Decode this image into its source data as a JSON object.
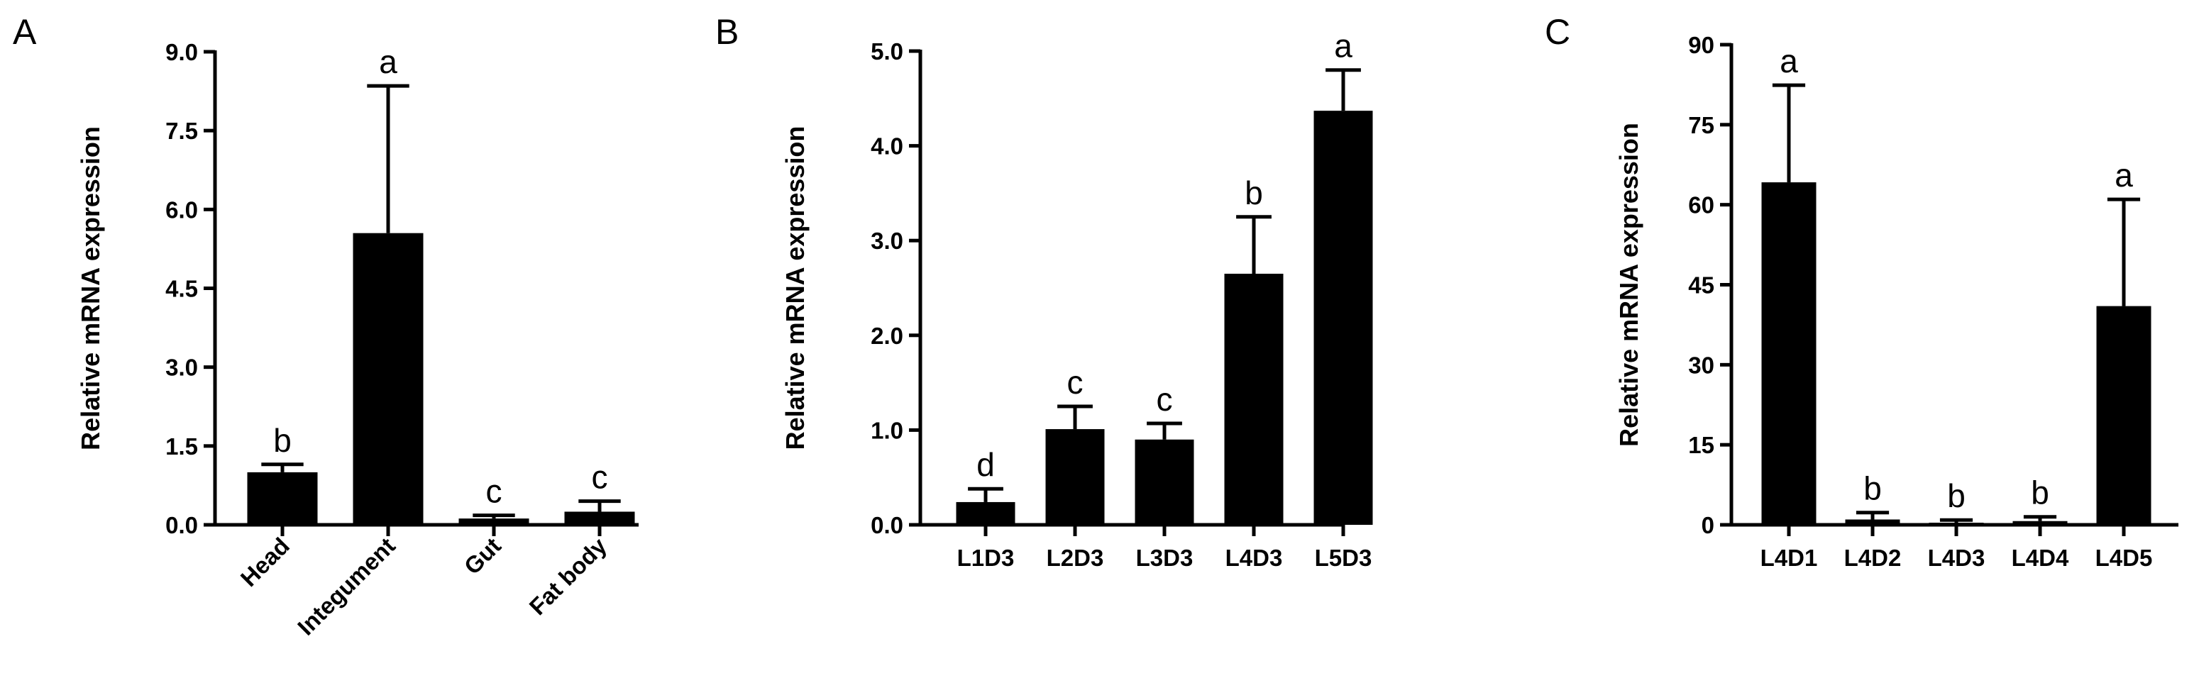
{
  "chart_data": [
    {
      "panel": "A",
      "type": "bar",
      "ylabel": "Relative mRNA expression",
      "ylim": [
        0,
        9
      ],
      "yticks": [
        "0.0",
        "1.5",
        "3.0",
        "4.5",
        "6.0",
        "7.5",
        "9.0"
      ],
      "categories": [
        "Head",
        "Integument",
        "Gut",
        "Fat body"
      ],
      "values": [
        1.0,
        5.55,
        0.12,
        0.25
      ],
      "errors": [
        0.15,
        2.8,
        0.06,
        0.2
      ],
      "significance": [
        "b",
        "a",
        "c",
        "c"
      ],
      "rotated_labels": true
    },
    {
      "panel": "B",
      "type": "bar",
      "ylabel": "Relative mRNA expression",
      "ylim": [
        0,
        5
      ],
      "yticks": [
        "0.0",
        "1.0",
        "2.0",
        "3.0",
        "4.0",
        "5.0"
      ],
      "categories": [
        "L1D3",
        "L2D3",
        "L3D3",
        "L4D3",
        "L5D3"
      ],
      "values": [
        0.24,
        1.01,
        0.9,
        2.65,
        4.37
      ],
      "errors": [
        0.14,
        0.24,
        0.17,
        0.6,
        0.43
      ],
      "significance": [
        "d",
        "c",
        "c",
        "b",
        "a"
      ],
      "rotated_labels": false
    },
    {
      "panel": "C",
      "type": "bar",
      "ylabel": "Relative mRNA expression",
      "ylim": [
        0,
        90
      ],
      "yticks": [
        "0",
        "15",
        "30",
        "45",
        "60",
        "75",
        "90"
      ],
      "categories": [
        "L4D1",
        "L4D2",
        "L4D3",
        "L4D4",
        "L4D5"
      ],
      "values": [
        64.2,
        1.0,
        0.4,
        0.7,
        41.0
      ],
      "errors": [
        18.2,
        1.3,
        0.5,
        0.8,
        20.0
      ],
      "significance": [
        "a",
        "b",
        "b",
        "b",
        "a"
      ],
      "rotated_labels": false
    }
  ]
}
